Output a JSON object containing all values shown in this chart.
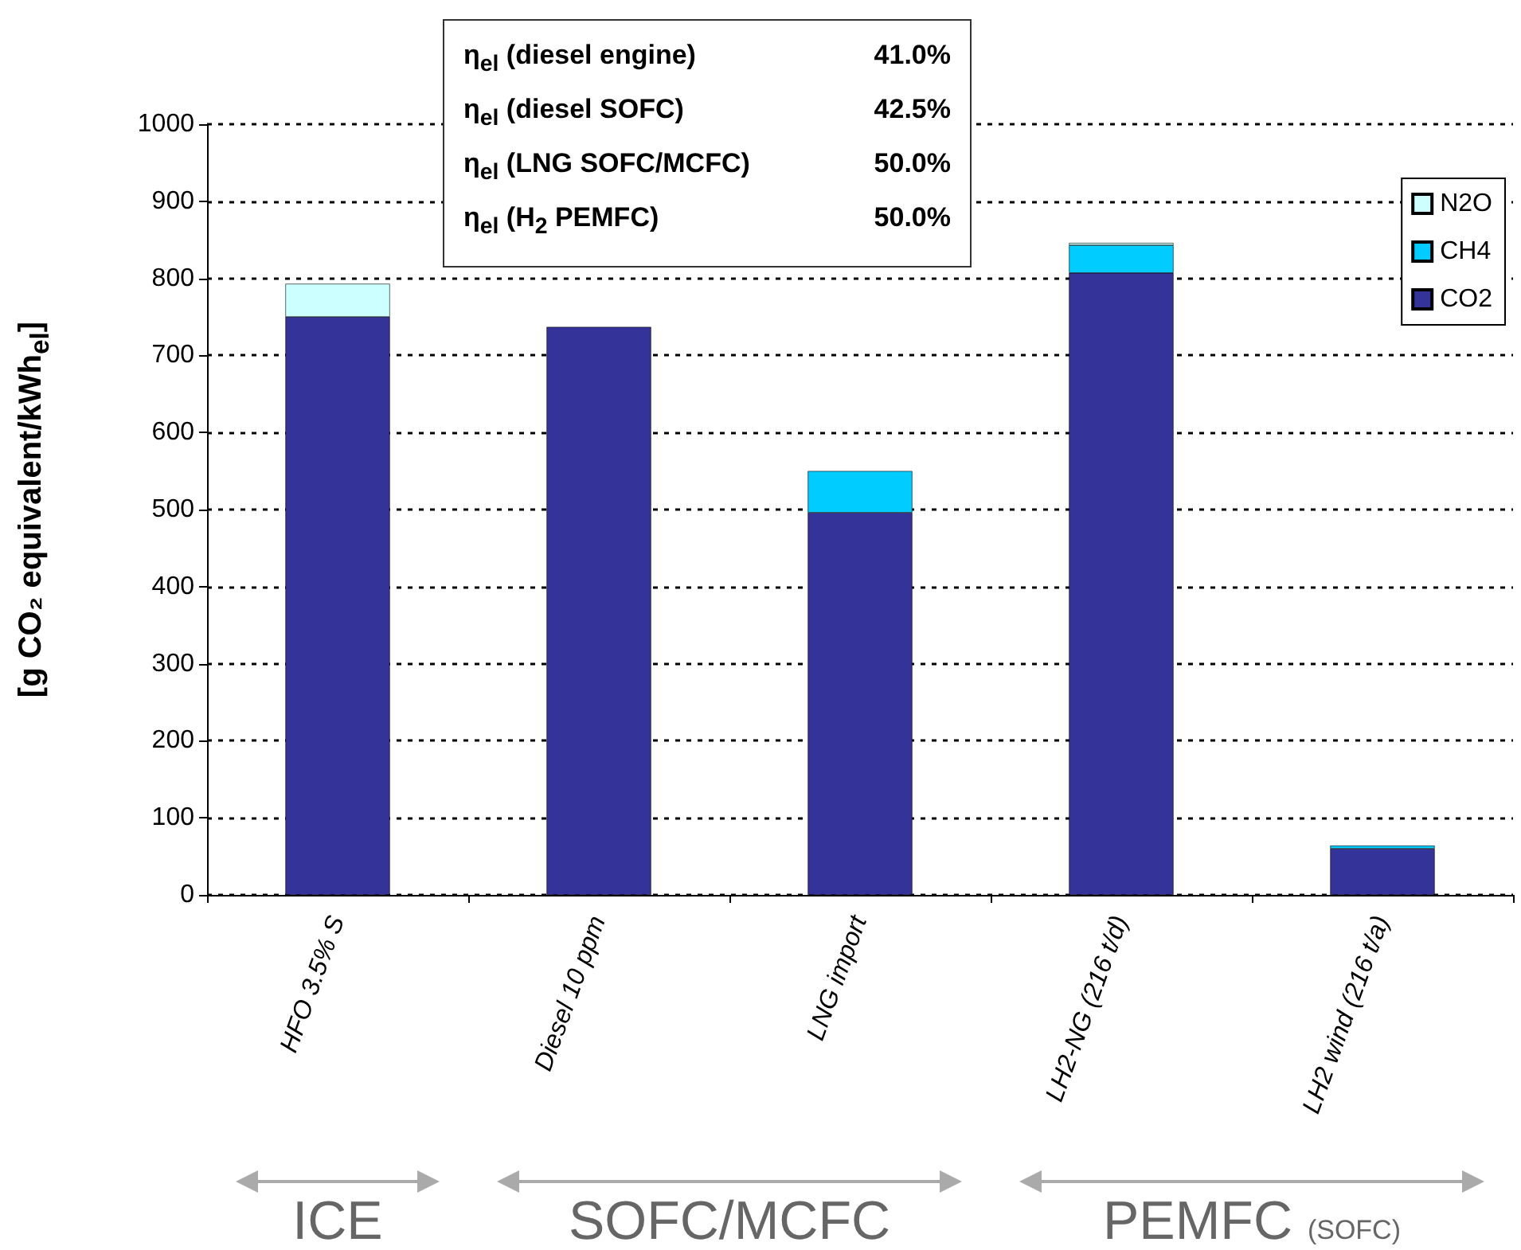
{
  "chart_data": {
    "type": "bar",
    "stacked": true,
    "ylabel": "[g CO₂ equivalent/kWh$_{el}$]",
    "categories": [
      "HFO 3.5% S",
      "Diesel 10 ppm",
      "LNG import",
      "LH2-NG (216 t/d)",
      "LH2 wind (216 t/a)"
    ],
    "series": [
      {
        "name": "CO2",
        "color": "#333399",
        "values": [
          750,
          737,
          496,
          807,
          60
        ]
      },
      {
        "name": "CH4",
        "color": "#00ccff",
        "values": [
          0,
          0,
          54,
          36,
          4
        ]
      },
      {
        "name": "N2O",
        "color": "#ccffff",
        "values": [
          43,
          0,
          0,
          3,
          0
        ]
      }
    ],
    "ylim": [
      0,
      1000
    ],
    "yticks": [
      0,
      100,
      200,
      300,
      400,
      500,
      600,
      700,
      800,
      900,
      1000
    ],
    "grid": "y",
    "legend": "top right",
    "annotations": [
      "η$_{el}$ (diesel engine)",
      "41.0%",
      "η$_{el}$ (diesel SOFC)",
      "42.5%",
      "η$_{el}$ (LNG SOFC/MCFC)",
      "50.0%",
      "η$_{el}$ (H$_{2}$ PEMFC)",
      "50.0%",
      "ICE",
      "SOFC/MCFC",
      "PEMFC (SOFC)"
    ]
  }
}
